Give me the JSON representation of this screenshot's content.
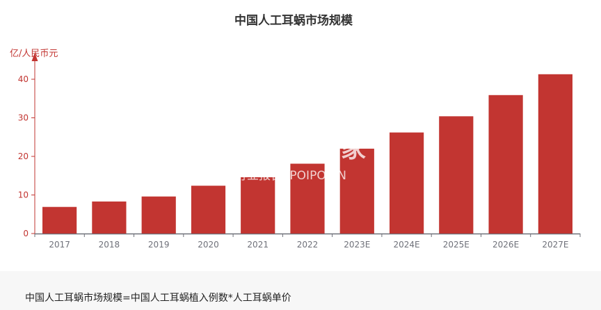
{
  "chart_data": {
    "type": "bar",
    "title": "中国人工耳蜗市场规模",
    "ylabel": "亿/人民币元",
    "xlabel": "",
    "categories": [
      "2017",
      "2018",
      "2019",
      "2020",
      "2021",
      "2022",
      "2023E",
      "2024E",
      "2025E",
      "2026E",
      "2027E"
    ],
    "values": [
      6.9,
      8.3,
      9.6,
      12.4,
      14.6,
      18.1,
      22.0,
      26.2,
      30.4,
      35.9,
      41.3
    ],
    "ylim": [
      0,
      40
    ],
    "yticks": [
      "0",
      "10",
      "20",
      "30",
      "40"
    ],
    "grid": false,
    "bar_color": "#c23531",
    "axis_color": "#c23531"
  },
  "watermark": {
    "brand": "产业并购家",
    "sub": "行业报告 IPOIPO.CN"
  },
  "footer": {
    "note": "中国人工耳蜗市场规模=中国人工耳蜗植入例数*人工耳蜗单价"
  }
}
